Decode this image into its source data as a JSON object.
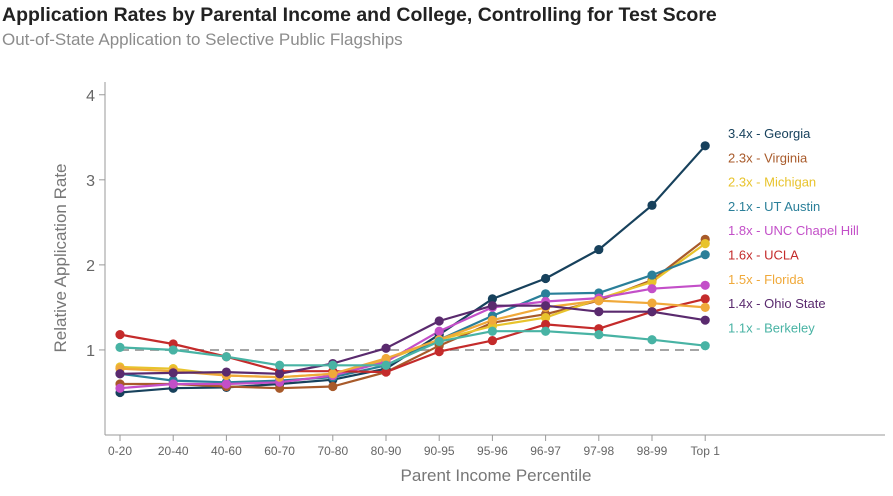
{
  "chart_data": {
    "type": "line",
    "title": "Application Rates by Parental Income and College, Controlling for Test Score",
    "subtitle": "Out-of-State Application to Selective Public Flagships",
    "xlabel": "Parent Income Percentile",
    "ylabel": "Relative Application Rate",
    "categories": [
      "0-20",
      "20-40",
      "40-60",
      "60-70",
      "70-80",
      "80-90",
      "90-95",
      "95-96",
      "96-97",
      "97-98",
      "98-99",
      "Top 1"
    ],
    "ylim": [
      0,
      4.15
    ],
    "yticks": [
      1,
      2,
      3,
      4
    ],
    "reference_line": 1,
    "series": [
      {
        "name": "Georgia",
        "label": "3.4x - Georgia",
        "color": "#17415c",
        "values": [
          0.5,
          0.55,
          0.56,
          0.6,
          0.65,
          0.78,
          1.18,
          1.6,
          1.84,
          2.18,
          2.7,
          3.4
        ]
      },
      {
        "name": "Virginia",
        "label": "2.3x - Virginia",
        "color": "#a85a2a",
        "values": [
          0.6,
          0.6,
          0.57,
          0.55,
          0.57,
          0.74,
          1.05,
          1.32,
          1.42,
          1.58,
          1.82,
          2.3
        ]
      },
      {
        "name": "Michigan",
        "label": "2.3x - Michigan",
        "color": "#e8c32c",
        "values": [
          0.8,
          0.78,
          0.7,
          0.68,
          0.72,
          0.88,
          1.12,
          1.28,
          1.38,
          1.6,
          1.8,
          2.25
        ]
      },
      {
        "name": "UT Austin",
        "label": "2.1x - UT Austin",
        "color": "#2a7f99",
        "values": [
          0.72,
          0.64,
          0.62,
          0.64,
          0.68,
          0.82,
          1.12,
          1.4,
          1.66,
          1.67,
          1.88,
          2.12
        ]
      },
      {
        "name": "UNC Chapel Hill",
        "label": "1.8x - UNC Chapel Hill",
        "color": "#c34fc8",
        "values": [
          0.55,
          0.6,
          0.6,
          0.62,
          0.7,
          0.86,
          1.22,
          1.5,
          1.57,
          1.61,
          1.72,
          1.76
        ]
      },
      {
        "name": "UCLA",
        "label": "1.6x - UCLA",
        "color": "#c42b2b",
        "values": [
          1.18,
          1.07,
          0.92,
          0.75,
          0.75,
          0.74,
          0.98,
          1.11,
          1.3,
          1.25,
          1.45,
          1.6
        ]
      },
      {
        "name": "Florida",
        "label": "1.5x - Florida",
        "color": "#f0a93a",
        "values": [
          0.78,
          0.75,
          0.7,
          0.68,
          0.72,
          0.9,
          1.12,
          1.35,
          1.5,
          1.58,
          1.55,
          1.5
        ]
      },
      {
        "name": "Ohio State",
        "label": "1.4x - Ohio State",
        "color": "#5a2a6e",
        "values": [
          0.72,
          0.73,
          0.74,
          0.72,
          0.84,
          1.02,
          1.34,
          1.52,
          1.52,
          1.45,
          1.45,
          1.35
        ]
      },
      {
        "name": "Berkeley",
        "label": "1.1x - Berkeley",
        "color": "#48b3a4",
        "values": [
          1.03,
          1.0,
          0.92,
          0.82,
          0.82,
          0.82,
          1.1,
          1.22,
          1.22,
          1.18,
          1.12,
          1.05
        ]
      }
    ]
  }
}
